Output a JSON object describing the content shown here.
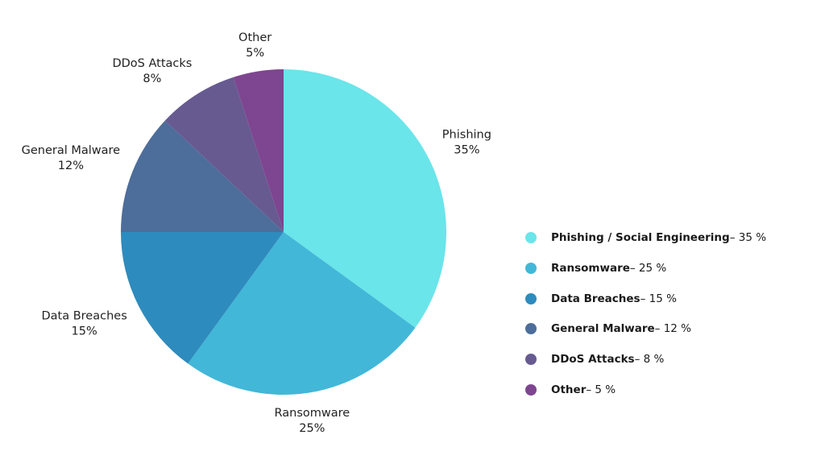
{
  "chart_data": {
    "type": "pie",
    "slices": [
      {
        "label": "Phishing",
        "percent_label": "35%",
        "legend_name": "Phishing / Social Engineering",
        "legend_value": " – 35 %",
        "value": 35,
        "color": "#6ae5ea"
      },
      {
        "label": "Ransomware",
        "percent_label": "25%",
        "legend_name": "Ransomware",
        "legend_value": " – 25 %",
        "value": 25,
        "color": "#42b7d8"
      },
      {
        "label": "Data Breaches",
        "percent_label": "15%",
        "legend_name": "Data Breaches",
        "legend_value": " – 15 %",
        "value": 15,
        "color": "#2e8bbd"
      },
      {
        "label": "General Malware",
        "percent_label": "12%",
        "legend_name": "General Malware",
        "legend_value": " – 12 %",
        "value": 12,
        "color": "#4d6d9a"
      },
      {
        "label": "DDoS Attacks",
        "percent_label": "8%",
        "legend_name": "DDoS Attacks",
        "legend_value": " – 8 %",
        "value": 8,
        "color": "#675a91"
      },
      {
        "label": "Other",
        "percent_label": "5%",
        "legend_name": "Other",
        "legend_value": " – 5 %",
        "value": 5,
        "color": "#7e4590"
      }
    ],
    "legend_position": "right"
  }
}
